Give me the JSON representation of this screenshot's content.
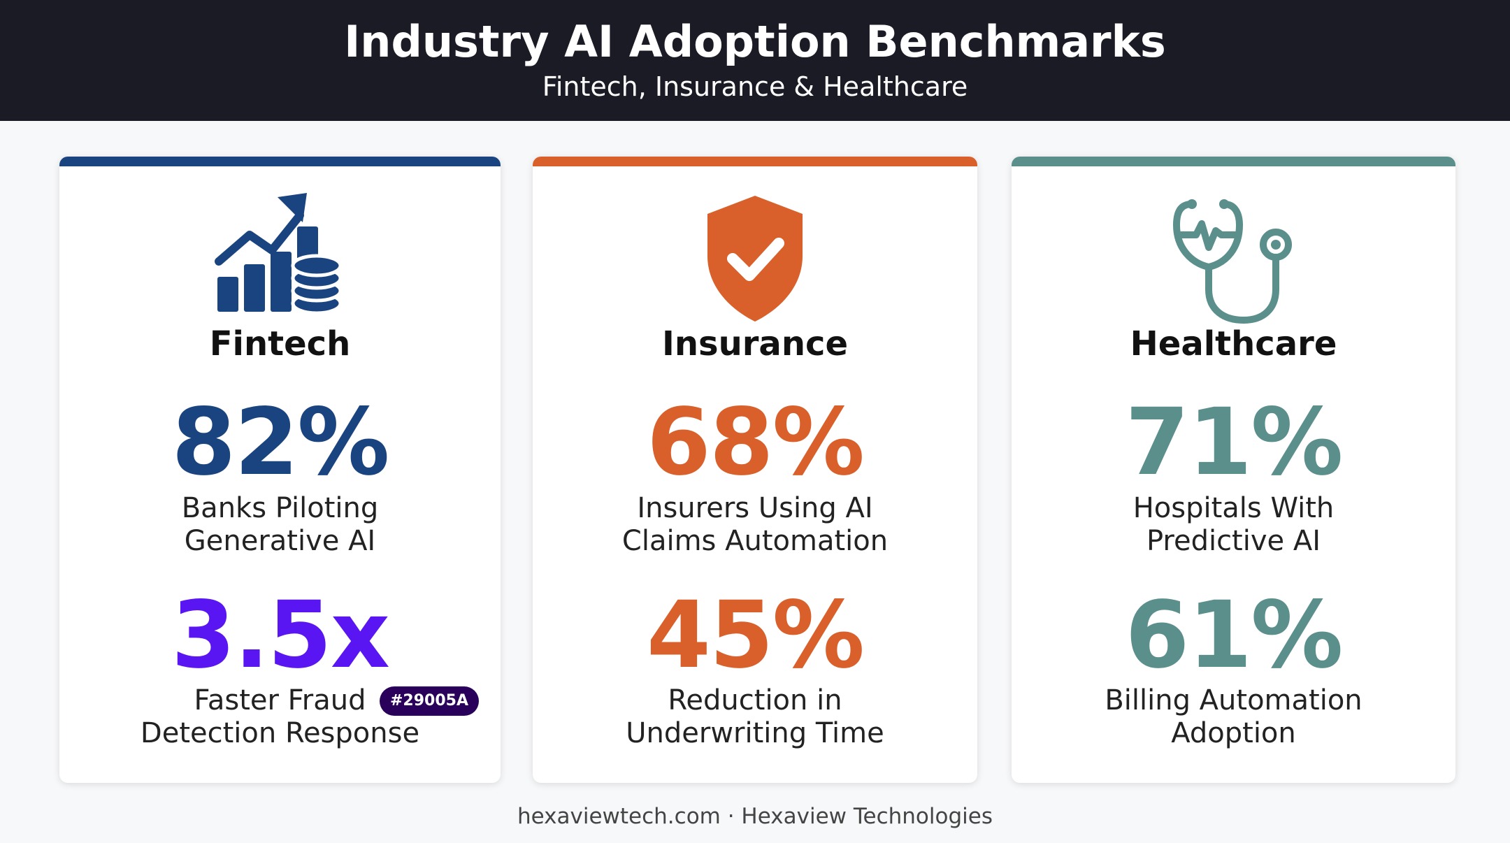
{
  "header": {
    "title": "Industry AI Adoption Benchmarks",
    "subtitle": "Fintech, Insurance & Healthcare"
  },
  "cards": [
    {
      "name": "Fintech",
      "accent_color": "#1a4480",
      "icon": "growth-chart-coins-icon",
      "stats": [
        {
          "value": "82%",
          "label_lines": [
            "Banks Piloting",
            "Generative AI"
          ],
          "color": "#1a4480"
        },
        {
          "value": "3.5x",
          "label_lines": [
            "Faster Fraud",
            "Detection Response"
          ],
          "color": "#5a16f2",
          "badge": "#29005A"
        }
      ]
    },
    {
      "name": "Insurance",
      "accent_color": "#d9602a",
      "icon": "shield-check-icon",
      "stats": [
        {
          "value": "68%",
          "label_lines": [
            "Insurers Using AI",
            "Claims Automation"
          ],
          "color": "#d9602a"
        },
        {
          "value": "45%",
          "label_lines": [
            "Reduction in",
            "Underwriting Time"
          ],
          "color": "#d9602a"
        }
      ]
    },
    {
      "name": "Healthcare",
      "accent_color": "#5a8f8c",
      "icon": "stethoscope-icon",
      "stats": [
        {
          "value": "71%",
          "label_lines": [
            "Hospitals With",
            "Predictive AI"
          ],
          "color": "#5a8f8c"
        },
        {
          "value": "61%",
          "label_lines": [
            "Billing Automation",
            "Adoption"
          ],
          "color": "#5a8f8c"
        }
      ]
    }
  ],
  "footer": "hexaviewtech.com · Hexaview Technologies"
}
